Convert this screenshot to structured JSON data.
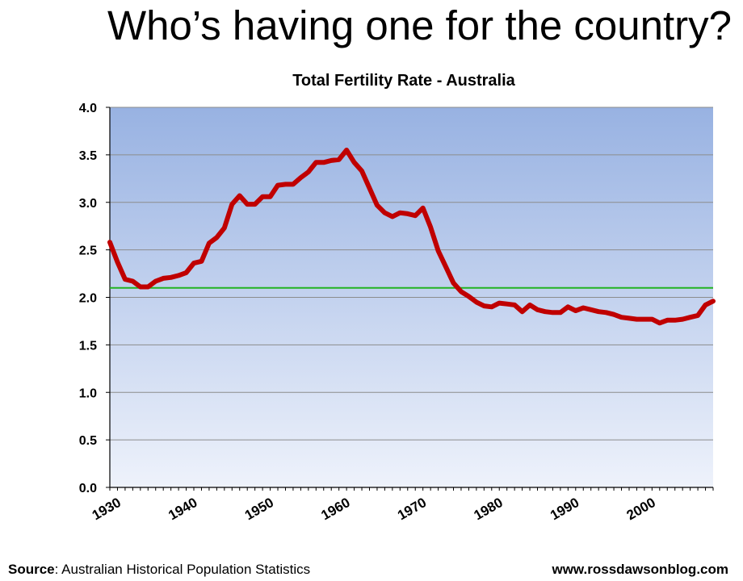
{
  "slide": {
    "title": "Who’s having one for the country?"
  },
  "footer": {
    "source_label": "Source",
    "source_text": ":  Australian Historical Population Statistics",
    "website": "www.rossdawsonblog.com"
  },
  "colors": {
    "line": "#c00000",
    "reference_line": "#22b322",
    "plot_bg_top": "#98b2e2",
    "plot_bg_bottom": "#eef2fb",
    "grid": "#8c8c8c"
  },
  "chart_data": {
    "type": "line",
    "title": "Total Fertility Rate - Australia",
    "xlabel": "",
    "ylabel": "",
    "xlim": [
      1930,
      2009
    ],
    "ylim": [
      0,
      4.0
    ],
    "y_ticks": [
      "0.0",
      "0.5",
      "1.0",
      "1.5",
      "2.0",
      "2.5",
      "3.0",
      "3.5",
      "4.0"
    ],
    "x_ticks": [
      "1930",
      "1940",
      "1950",
      "1960",
      "1970",
      "1980",
      "1990",
      "2000"
    ],
    "grid": true,
    "reference_line": {
      "y": 2.1
    },
    "series": [
      {
        "x": [
          1930,
          1931,
          1932,
          1933,
          1934,
          1935,
          1936,
          1937,
          1938,
          1939,
          1940,
          1941,
          1942,
          1943,
          1944,
          1945,
          1946,
          1947,
          1948,
          1949,
          1950,
          1951,
          1952,
          1953,
          1954,
          1955,
          1956,
          1957,
          1958,
          1959,
          1960,
          1961,
          1962,
          1963,
          1964,
          1965,
          1966,
          1967,
          1968,
          1969,
          1970,
          1971,
          1972,
          1973,
          1974,
          1975,
          1976,
          1977,
          1978,
          1979,
          1980,
          1981,
          1982,
          1983,
          1984,
          1985,
          1986,
          1987,
          1988,
          1989,
          1990,
          1991,
          1992,
          1993,
          1994,
          1995,
          1996,
          1997,
          1998,
          1999,
          2000,
          2001,
          2002,
          2003,
          2004,
          2005,
          2006,
          2007,
          2008,
          2009
        ],
        "values": [
          2.58,
          2.37,
          2.19,
          2.17,
          2.11,
          2.11,
          2.17,
          2.2,
          2.21,
          2.23,
          2.26,
          2.36,
          2.38,
          2.57,
          2.63,
          2.73,
          2.98,
          3.07,
          2.98,
          2.98,
          3.06,
          3.06,
          3.18,
          3.19,
          3.19,
          3.26,
          3.32,
          3.42,
          3.42,
          3.44,
          3.45,
          3.55,
          3.42,
          3.33,
          3.15,
          2.97,
          2.89,
          2.85,
          2.89,
          2.88,
          2.86,
          2.94,
          2.74,
          2.49,
          2.32,
          2.15,
          2.06,
          2.01,
          1.95,
          1.91,
          1.9,
          1.94,
          1.93,
          1.92,
          1.85,
          1.92,
          1.87,
          1.85,
          1.84,
          1.84,
          1.9,
          1.86,
          1.89,
          1.87,
          1.85,
          1.84,
          1.82,
          1.79,
          1.78,
          1.77,
          1.77,
          1.77,
          1.73,
          1.76,
          1.76,
          1.77,
          1.79,
          1.81,
          1.92,
          1.96
        ]
      }
    ]
  }
}
